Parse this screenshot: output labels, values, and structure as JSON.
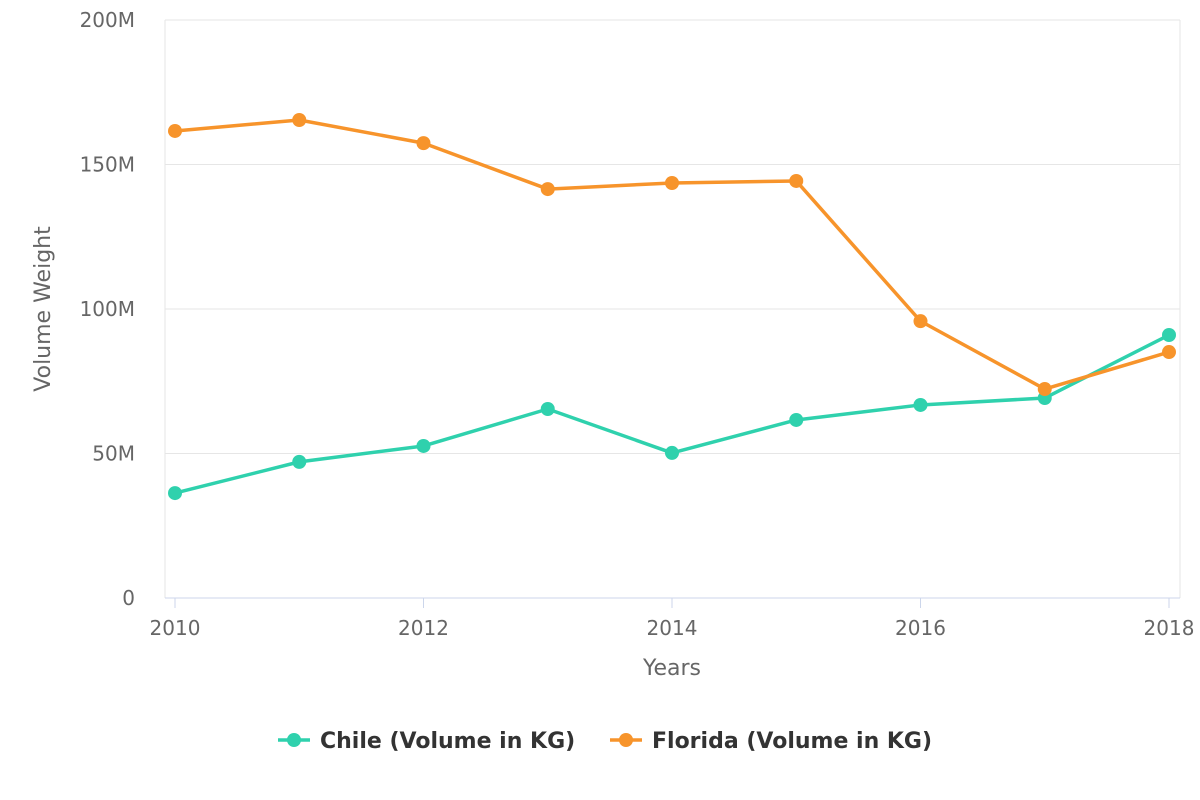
{
  "chart_data": {
    "type": "line",
    "title": "",
    "xlabel": "Years",
    "ylabel": "Volume Weight",
    "x": [
      2010,
      2011,
      2012,
      2013,
      2014,
      2015,
      2016,
      2017,
      2018
    ],
    "xlim": [
      2010,
      2018
    ],
    "ylim": [
      0,
      200000000
    ],
    "x_ticks": [
      "2010",
      "2012",
      "2014",
      "2016",
      "2018"
    ],
    "x_tick_values": [
      2010,
      2012,
      2014,
      2016,
      2018
    ],
    "y_ticks": [
      "0",
      "50M",
      "100M",
      "150M",
      "200M"
    ],
    "y_tick_values": [
      0,
      50000000,
      100000000,
      150000000,
      200000000
    ],
    "grid": "horizontal",
    "legend_position": "bottom",
    "series": [
      {
        "name": "Chile (Volume in KG)",
        "color": "#2fd1ad",
        "values": [
          36300000,
          47100000,
          52600000,
          65400000,
          50200000,
          61600000,
          66800000,
          69200000,
          91000000
        ]
      },
      {
        "name": "Florida (Volume in KG)",
        "color": "#f7942b",
        "values": [
          161600000,
          165400000,
          157400000,
          141500000,
          143600000,
          144300000,
          95800000,
          72300000,
          85100000
        ]
      }
    ]
  }
}
